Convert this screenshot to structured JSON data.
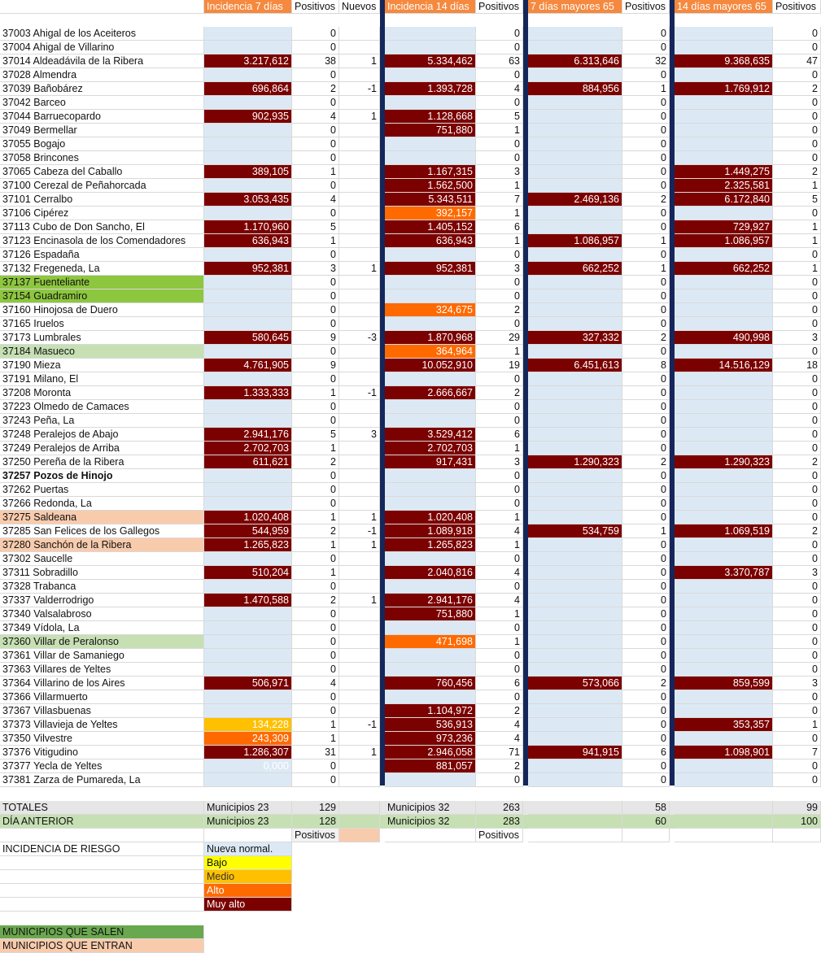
{
  "colors": {
    "header_orange": "#f5893f",
    "nueva_normalidad": "#dce9f5",
    "bajo": "#ffff00",
    "medio": "#ffc000",
    "alto": "#ff6a00",
    "muy_alto": "#7b0000",
    "sale_green": "#8dc63f",
    "sale_light_green": "#c6e0b4",
    "entra_peach": "#f8cbad",
    "separator": "#15275a",
    "totales_bg": "#e6e6e6",
    "anterior_bg": "#c6e0b4"
  },
  "header": {
    "ine_overlay": "",
    "inc7": "Incidencia 7 días",
    "pos7": "Positivos",
    "nuevos": "Nuevos",
    "inc14": "Incidencia 14 días",
    "pos14": "Positivos",
    "inc7_65": "7 días mayores 65",
    "pos7_65": "Positivos",
    "inc14_65": "14 días mayores 65",
    "pos14_65": "Positivos"
  },
  "rows": [
    [
      "37003 Ahigal de los Aceiteros",
      "n",
      "",
      "0",
      "",
      "n",
      "",
      "0",
      "n",
      "",
      "0",
      "n",
      "",
      "0",
      ""
    ],
    [
      "37004 Ahigal de Villarino",
      "n",
      "",
      "0",
      "",
      "n",
      "",
      "0",
      "n",
      "",
      "0",
      "n",
      "",
      "0",
      ""
    ],
    [
      "37014 Aldeadávila de la Ribera",
      "m",
      "3.217,612",
      "38",
      "1",
      "m",
      "5.334,462",
      "63",
      "m",
      "6.313,646",
      "32",
      "m",
      "9.368,635",
      "47",
      ""
    ],
    [
      "37028 Almendra",
      "n",
      "",
      "0",
      "",
      "n",
      "",
      "0",
      "n",
      "",
      "0",
      "n",
      "",
      "0",
      ""
    ],
    [
      "37039 Bañobárez",
      "m",
      "696,864",
      "2",
      "-1",
      "m",
      "1.393,728",
      "4",
      "m",
      "884,956",
      "1",
      "m",
      "1.769,912",
      "2",
      ""
    ],
    [
      "37042 Barceo",
      "n",
      "",
      "0",
      "",
      "n",
      "",
      "0",
      "n",
      "",
      "0",
      "n",
      "",
      "0",
      ""
    ],
    [
      "37044 Barruecopardo",
      "m",
      "902,935",
      "4",
      "1",
      "m",
      "1.128,668",
      "5",
      "n",
      "",
      "0",
      "n",
      "",
      "0",
      ""
    ],
    [
      "37049 Bermellar",
      "n",
      "",
      "0",
      "",
      "m",
      "751,880",
      "1",
      "n",
      "",
      "0",
      "n",
      "",
      "0",
      ""
    ],
    [
      "37055 Bogajo",
      "n",
      "",
      "0",
      "",
      "n",
      "",
      "0",
      "n",
      "",
      "0",
      "n",
      "",
      "0",
      ""
    ],
    [
      "37058 Brincones",
      "n",
      "",
      "0",
      "",
      "n",
      "",
      "0",
      "n",
      "",
      "0",
      "n",
      "",
      "0",
      ""
    ],
    [
      "37065 Cabeza del Caballo",
      "m",
      "389,105",
      "1",
      "",
      "m",
      "1.167,315",
      "3",
      "n",
      "",
      "0",
      "m",
      "1.449,275",
      "2",
      ""
    ],
    [
      "37100 Cerezal de Peñahorcada",
      "n",
      "",
      "0",
      "",
      "m",
      "1.562,500",
      "1",
      "n",
      "",
      "0",
      "m",
      "2.325,581",
      "1",
      ""
    ],
    [
      "37101 Cerralbo",
      "m",
      "3.053,435",
      "4",
      "",
      "m",
      "5.343,511",
      "7",
      "m",
      "2.469,136",
      "2",
      "m",
      "6.172,840",
      "5",
      ""
    ],
    [
      "37106 Cipérez",
      "n",
      "",
      "0",
      "",
      "a",
      "392,157",
      "1",
      "n",
      "",
      "0",
      "n",
      "",
      "0",
      ""
    ],
    [
      "37113 Cubo de Don Sancho, El",
      "m",
      "1.170,960",
      "5",
      "",
      "m",
      "1.405,152",
      "6",
      "n",
      "",
      "0",
      "m",
      "729,927",
      "1",
      ""
    ],
    [
      "37123 Encinasola de los Comendadores",
      "m",
      "636,943",
      "1",
      "",
      "m",
      "636,943",
      "1",
      "m",
      "1.086,957",
      "1",
      "m",
      "1.086,957",
      "1",
      ""
    ],
    [
      "37126 Espadaña",
      "n",
      "",
      "0",
      "",
      "n",
      "",
      "0",
      "n",
      "",
      "0",
      "n",
      "",
      "0",
      ""
    ],
    [
      "37132 Fregeneda, La",
      "m",
      "952,381",
      "3",
      "1",
      "m",
      "952,381",
      "3",
      "m",
      "662,252",
      "1",
      "m",
      "662,252",
      "1",
      ""
    ],
    [
      "37137 Fuenteliante",
      "n",
      "",
      "0",
      "",
      "n",
      "",
      "0",
      "n",
      "",
      "0",
      "n",
      "",
      "0",
      "sg"
    ],
    [
      "37154 Guadramiro",
      "n",
      "",
      "0",
      "",
      "n",
      "",
      "0",
      "n",
      "",
      "0",
      "n",
      "",
      "0",
      "sg"
    ],
    [
      "37160 Hinojosa de Duero",
      "n",
      "",
      "0",
      "",
      "a",
      "324,675",
      "2",
      "n",
      "",
      "0",
      "n",
      "",
      "0",
      ""
    ],
    [
      "37165 Iruelos",
      "n",
      "",
      "0",
      "",
      "n",
      "",
      "0",
      "n",
      "",
      "0",
      "n",
      "",
      "0",
      ""
    ],
    [
      "37173 Lumbrales",
      "m",
      "580,645",
      "9",
      "-3",
      "m",
      "1.870,968",
      "29",
      "m",
      "327,332",
      "2",
      "m",
      "490,998",
      "3",
      ""
    ],
    [
      "37184 Masueco",
      "n",
      "",
      "0",
      "",
      "a",
      "364,964",
      "1",
      "n",
      "",
      "0",
      "n",
      "",
      "0",
      "lg"
    ],
    [
      "37190 Mieza",
      "m",
      "4.761,905",
      "9",
      "",
      "m",
      "10.052,910",
      "19",
      "m",
      "6.451,613",
      "8",
      "m",
      "14.516,129",
      "18",
      ""
    ],
    [
      "37191 Milano, El",
      "n",
      "",
      "0",
      "",
      "n",
      "",
      "0",
      "n",
      "",
      "0",
      "n",
      "",
      "0",
      ""
    ],
    [
      "37208 Moronta",
      "m",
      "1.333,333",
      "1",
      "-1",
      "m",
      "2.666,667",
      "2",
      "n",
      "",
      "0",
      "n",
      "",
      "0",
      ""
    ],
    [
      "37223 Olmedo de Camaces",
      "n",
      "",
      "0",
      "",
      "n",
      "",
      "0",
      "n",
      "",
      "0",
      "n",
      "",
      "0",
      ""
    ],
    [
      "37243 Peña, La",
      "n",
      "",
      "0",
      "",
      "n",
      "",
      "0",
      "n",
      "",
      "0",
      "n",
      "",
      "0",
      ""
    ],
    [
      "37248 Peralejos de Abajo",
      "m",
      "2.941,176",
      "5",
      "3",
      "m",
      "3.529,412",
      "6",
      "n",
      "",
      "0",
      "n",
      "",
      "0",
      ""
    ],
    [
      "37249 Peralejos de Arriba",
      "m",
      "2.702,703",
      "1",
      "",
      "m",
      "2.702,703",
      "1",
      "n",
      "",
      "0",
      "n",
      "",
      "0",
      ""
    ],
    [
      "37250 Pereña de la Ribera",
      "m",
      "611,621",
      "2",
      "",
      "m",
      "917,431",
      "3",
      "m",
      "1.290,323",
      "2",
      "m",
      "1.290,323",
      "2",
      ""
    ],
    [
      "37257 Pozos de Hinojo",
      "n",
      "",
      "0",
      "",
      "n",
      "",
      "0",
      "n",
      "",
      "0",
      "n",
      "",
      "0",
      "b"
    ],
    [
      "37262 Puertas",
      "n",
      "",
      "0",
      "",
      "n",
      "",
      "0",
      "n",
      "",
      "0",
      "n",
      "",
      "0",
      ""
    ],
    [
      "37266 Redonda, La",
      "n",
      "",
      "0",
      "",
      "n",
      "",
      "0",
      "n",
      "",
      "0",
      "n",
      "",
      "0",
      ""
    ],
    [
      "37275 Saldeana",
      "m",
      "1.020,408",
      "1",
      "1",
      "m",
      "1.020,408",
      "1",
      "n",
      "",
      "0",
      "n",
      "",
      "0",
      "pe"
    ],
    [
      "37285 San Felices de los Gallegos",
      "m",
      "544,959",
      "2",
      "-1",
      "m",
      "1.089,918",
      "4",
      "m",
      "534,759",
      "1",
      "m",
      "1.069,519",
      "2",
      ""
    ],
    [
      "37280 Sanchón de la Ribera",
      "m",
      "1.265,823",
      "1",
      "1",
      "m",
      "1.265,823",
      "1",
      "n",
      "",
      "0",
      "n",
      "",
      "0",
      "pe"
    ],
    [
      "37302 Saucelle",
      "n",
      "",
      "0",
      "",
      "n",
      "",
      "0",
      "n",
      "",
      "0",
      "n",
      "",
      "0",
      ""
    ],
    [
      "37311 Sobradillo",
      "m",
      "510,204",
      "1",
      "",
      "m",
      "2.040,816",
      "4",
      "n",
      "",
      "0",
      "m",
      "3.370,787",
      "3",
      ""
    ],
    [
      "37328 Trabanca",
      "n",
      "",
      "0",
      "",
      "n",
      "",
      "0",
      "n",
      "",
      "0",
      "n",
      "",
      "0",
      ""
    ],
    [
      "37337 Valderrodrigo",
      "m",
      "1.470,588",
      "2",
      "1",
      "m",
      "2.941,176",
      "4",
      "n",
      "",
      "0",
      "n",
      "",
      "0",
      ""
    ],
    [
      "37340 Valsalabroso",
      "n",
      "",
      "0",
      "",
      "m",
      "751,880",
      "1",
      "n",
      "",
      "0",
      "n",
      "",
      "0",
      ""
    ],
    [
      "37349 Vídola, La",
      "n",
      "",
      "0",
      "",
      "n",
      "",
      "0",
      "n",
      "",
      "0",
      "n",
      "",
      "0",
      ""
    ],
    [
      "37360 Villar de Peralonso",
      "n",
      "",
      "0",
      "",
      "a",
      "471,698",
      "1",
      "n",
      "",
      "0",
      "n",
      "",
      "0",
      "lg"
    ],
    [
      "37361 Villar de Samaniego",
      "n",
      "",
      "0",
      "",
      "n",
      "",
      "0",
      "n",
      "",
      "0",
      "n",
      "",
      "0",
      ""
    ],
    [
      "37363 Villares de Yeltes",
      "n",
      "",
      "0",
      "",
      "n",
      "",
      "0",
      "n",
      "",
      "0",
      "n",
      "",
      "0",
      ""
    ],
    [
      "37364 Villarino de los Aires",
      "m",
      "506,971",
      "4",
      "",
      "m",
      "760,456",
      "6",
      "m",
      "573,066",
      "2",
      "m",
      "859,599",
      "3",
      ""
    ],
    [
      "37366 Villarmuerto",
      "n",
      "",
      "0",
      "",
      "n",
      "",
      "0",
      "n",
      "",
      "0",
      "n",
      "",
      "0",
      ""
    ],
    [
      "37367 Villasbuenas",
      "n",
      "",
      "0",
      "",
      "m",
      "1.104,972",
      "2",
      "n",
      "",
      "0",
      "n",
      "",
      "0",
      ""
    ],
    [
      "37373 Villavieja de Yeltes",
      "d",
      "134,228",
      "1",
      "-1",
      "m",
      "536,913",
      "4",
      "n",
      "",
      "0",
      "m",
      "353,357",
      "1",
      ""
    ],
    [
      "37350 Vilvestre",
      "a",
      "243,309",
      "1",
      "",
      "m",
      "973,236",
      "4",
      "n",
      "",
      "0",
      "n",
      "",
      "0",
      ""
    ],
    [
      "37376 Vitigudino",
      "m",
      "1.286,307",
      "31",
      "1",
      "m",
      "2.946,058",
      "71",
      "m",
      "941,915",
      "6",
      "m",
      "1.098,901",
      "7",
      ""
    ],
    [
      "37377 Yecla de Yeltes",
      "n",
      "0,000",
      "0",
      "",
      "m",
      "881,057",
      "2",
      "n",
      "",
      "0",
      "n",
      "",
      "0",
      ""
    ],
    [
      "37381 Zarza de Pumareda, La",
      "n",
      "",
      "0",
      "",
      "n",
      "",
      "0",
      "n",
      "",
      "0",
      "n",
      "",
      "0",
      ""
    ]
  ],
  "totales": {
    "label": "TOTALES",
    "mun7": "Municipios 23",
    "pos7": "129",
    "mun14": "Municipios 32",
    "pos14": "263",
    "pos7_65": "58",
    "pos14_65": "99"
  },
  "anterior": {
    "label": "DÍA ANTERIOR",
    "mun7": "Municipios 23",
    "pos7": "128",
    "mun14": "Municipios 32",
    "pos14": "283",
    "pos7_65": "60",
    "pos14_65": "100"
  },
  "positivos_row": {
    "c": "Positivos",
    "f": "Positivos"
  },
  "legend": {
    "title": "INCIDENCIA DE RIESGO",
    "items": [
      {
        "key": "n",
        "label": "Nueva normal."
      },
      {
        "key": "b",
        "label": "Bajo"
      },
      {
        "key": "d",
        "label": "Medio"
      },
      {
        "key": "a",
        "label": "Alto"
      },
      {
        "key": "m",
        "label": "Muy alto"
      }
    ]
  },
  "salen": "MUNICIPIOS QUE SALEN",
  "entran": "MUNICIPIOS QUE ENTRAN"
}
